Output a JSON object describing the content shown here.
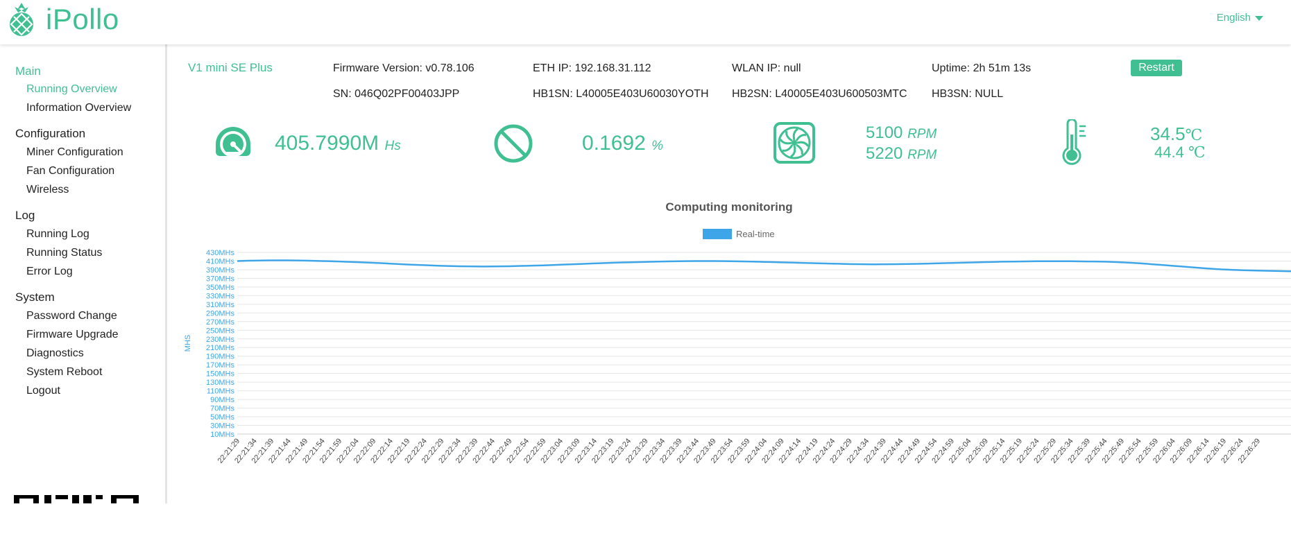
{
  "header": {
    "brand": "iPollo",
    "language": "English"
  },
  "sidebar": {
    "groups": [
      {
        "label": "Main",
        "items": [
          {
            "label": "Running Overview"
          },
          {
            "label": "Information Overview"
          }
        ]
      },
      {
        "label": "Configuration",
        "items": [
          {
            "label": "Miner Configuration"
          },
          {
            "label": "Fan Configuration"
          },
          {
            "label": "Wireless"
          }
        ]
      },
      {
        "label": "Log",
        "items": [
          {
            "label": "Running Log"
          },
          {
            "label": "Running Status"
          },
          {
            "label": "Error Log"
          }
        ]
      },
      {
        "label": "System",
        "items": [
          {
            "label": "Password Change"
          },
          {
            "label": "Firmware Upgrade"
          },
          {
            "label": "Diagnostics"
          },
          {
            "label": "System Reboot"
          },
          {
            "label": "Logout"
          }
        ]
      }
    ]
  },
  "device": {
    "model": "V1 mini SE Plus",
    "firmware": "Firmware Version: v0.78.106",
    "eth_ip": "ETH IP: 192.168.31.112",
    "wlan_ip": "WLAN IP: null",
    "uptime": "Uptime: 2h 51m 13s",
    "restart_label": "Restart",
    "sn": "SN: 046Q02PF00403JPP",
    "hb1sn": "HB1SN: L40005E403U60030YOTH",
    "hb2sn": "HB2SN: L40005E403U600503MTC",
    "hb3sn": "HB3SN: NULL"
  },
  "stats": {
    "hashrate": {
      "value": "405.7990M",
      "unit": "Hs"
    },
    "reject": {
      "value": "0.1692",
      "unit": "%"
    },
    "fan1": {
      "value": "5100",
      "unit": "RPM"
    },
    "fan2": {
      "value": "5220",
      "unit": "RPM"
    },
    "temp1": {
      "value": "34.5",
      "unit": "℃"
    },
    "temp2": {
      "value": "44.4",
      "unit": "℃"
    }
  },
  "chart_data": {
    "type": "line",
    "title": "Computing monitoring",
    "ylabel": "MHS",
    "xlabel": "",
    "legend": "top-center",
    "grid": true,
    "ylim": [
      10,
      430
    ],
    "yticks": [
      "10MHs",
      "30MHs",
      "50MHs",
      "70MHs",
      "90MHs",
      "110MHs",
      "130MHs",
      "150MHs",
      "170MHs",
      "190MHs",
      "210MHs",
      "230MHs",
      "250MHs",
      "270MHs",
      "290MHs",
      "310MHs",
      "330MHs",
      "350MHs",
      "370MHs",
      "390MHs",
      "410MHs",
      "430MHs"
    ],
    "x": [
      "22:21:29",
      "22:21:34",
      "22:21:39",
      "22:21:44",
      "22:21:49",
      "22:21:54",
      "22:21:59",
      "22:22:04",
      "22:22:09",
      "22:22:14",
      "22:22:19",
      "22:22:24",
      "22:22:29",
      "22:22:34",
      "22:22:39",
      "22:22:44",
      "22:22:49",
      "22:22:54",
      "22:22:59",
      "22:23:04",
      "22:23:09",
      "22:23:14",
      "22:23:19",
      "22:23:24",
      "22:23:29",
      "22:23:34",
      "22:23:39",
      "22:23:44",
      "22:23:49",
      "22:23:54",
      "22:23:59",
      "22:24:04",
      "22:24:09",
      "22:24:14",
      "22:24:19",
      "22:24:24",
      "22:24:29",
      "22:24:34",
      "22:24:39",
      "22:24:44",
      "22:24:49",
      "22:24:54",
      "22:24:59",
      "22:25:04",
      "22:25:09",
      "22:25:14",
      "22:25:19",
      "22:25:24",
      "22:25:29",
      "22:25:34",
      "22:25:39",
      "22:25:44",
      "22:25:49",
      "22:25:54",
      "22:25:59",
      "22:26:04",
      "22:26:09",
      "22:26:14",
      "22:26:19",
      "22:26:24",
      "22:26:29"
    ],
    "series": [
      {
        "name": "Real-time",
        "color": "#3ea6e8",
        "values": [
          410,
          411,
          411.5,
          411.5,
          411,
          410,
          409,
          407.5,
          406,
          404,
          402,
          400.5,
          399,
          398,
          397.5,
          397.5,
          398,
          399,
          400,
          401.5,
          403,
          404.5,
          406,
          407,
          408,
          409,
          409.5,
          410,
          410,
          409.5,
          409,
          408,
          407,
          406,
          405,
          404,
          403,
          402.5,
          402.5,
          403,
          403.5,
          404.5,
          405.5,
          406.5,
          407.5,
          408.5,
          409,
          409.5,
          409.5,
          409.5,
          409,
          408.5,
          407,
          405,
          402,
          399,
          396,
          393,
          390.5,
          389,
          388
        ]
      }
    ]
  },
  "colors": {
    "accent": "#3fbf92",
    "series": "#3ea6e8",
    "axis_text": "#3ea6e8"
  },
  "icons": [
    "pineapple-logo-icon",
    "caret-down-icon",
    "speedometer-icon",
    "prohibited-icon",
    "fan-icon",
    "thermometer-icon",
    "qr-code-icon"
  ]
}
